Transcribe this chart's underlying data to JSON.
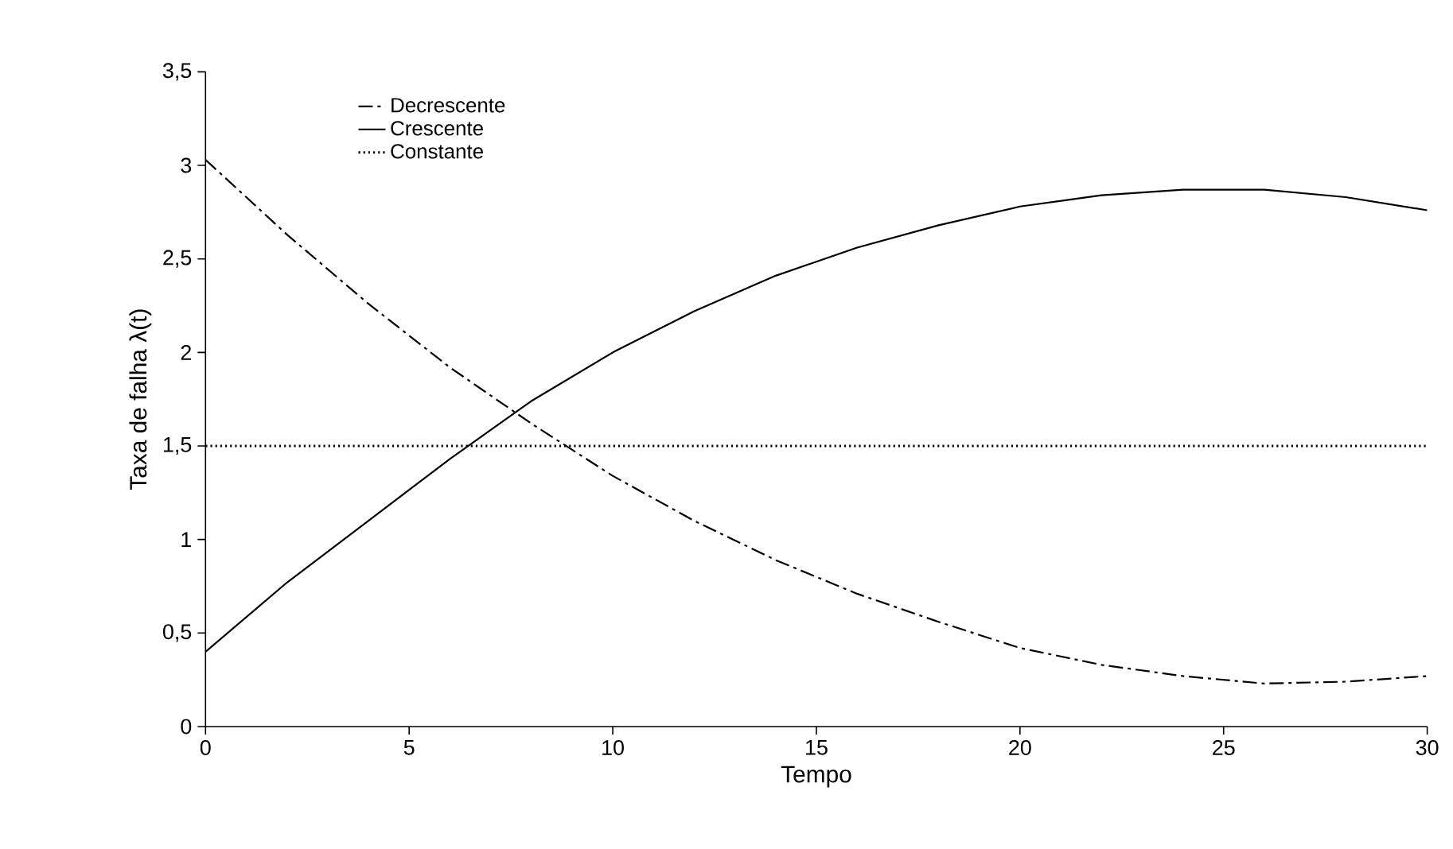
{
  "chart_data": {
    "type": "line",
    "xlabel": "Tempo",
    "ylabel": "Taxa de falha λ(t)",
    "xlim": [
      0,
      30
    ],
    "xticks": [
      0,
      5,
      10,
      15,
      20,
      25,
      30
    ],
    "ylim": [
      0,
      3.5
    ],
    "yticks": [
      0,
      {
        "value": 0.5,
        "label": "0,5"
      },
      1,
      {
        "value": 1.5,
        "label": "1,5"
      },
      2,
      {
        "value": 2.5,
        "label": "2,5"
      },
      3,
      {
        "value": 3.5,
        "label": "3,5"
      }
    ],
    "grid": false,
    "legend": "top left",
    "marker": "none",
    "series": [
      {
        "name": "Decrescente",
        "color": "#000000",
        "line_style": "dashdot",
        "x": [
          0,
          2,
          4,
          6,
          8,
          10,
          12,
          14,
          16,
          18,
          20,
          22,
          24,
          26,
          28,
          30
        ],
        "values": [
          3.03,
          2.63,
          2.26,
          1.92,
          1.62,
          1.34,
          1.1,
          0.89,
          0.71,
          0.56,
          0.42,
          0.33,
          0.27,
          0.23,
          0.24,
          0.27
        ]
      },
      {
        "name": "Crescente",
        "color": "#000000",
        "line_style": "solid",
        "x": [
          0,
          2,
          4,
          6,
          8,
          10,
          12,
          14,
          16,
          18,
          20,
          22,
          24,
          26,
          28,
          30
        ],
        "values": [
          0.4,
          0.77,
          1.1,
          1.43,
          1.74,
          2.0,
          2.22,
          2.41,
          2.56,
          2.68,
          2.78,
          2.84,
          2.87,
          2.87,
          2.83,
          2.76
        ]
      },
      {
        "name": "Constante",
        "color": "#000000",
        "line_style": "dotted",
        "x": [
          0,
          30
        ],
        "values": [
          1.5,
          1.5
        ]
      }
    ]
  }
}
